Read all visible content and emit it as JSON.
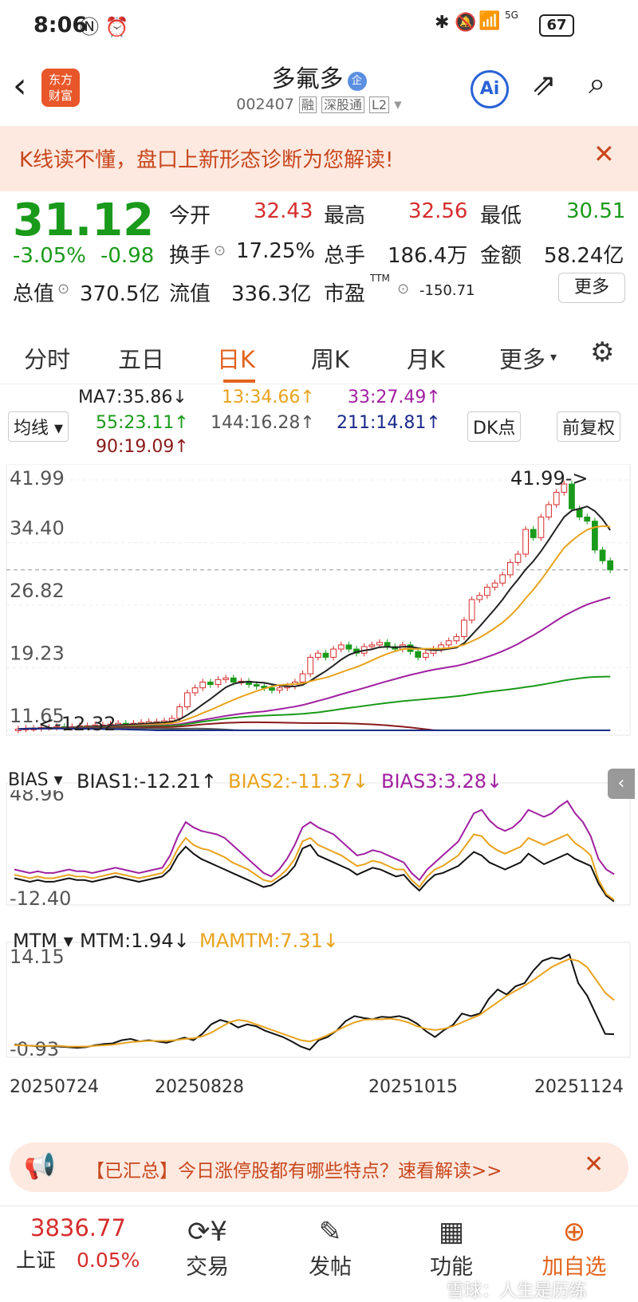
{
  "status": {
    "time": "8:06",
    "battery": "67",
    "net": "5G"
  },
  "header": {
    "title": "多氟多",
    "code": "002407",
    "tag_rong": "融",
    "tag_sgt": "深股通",
    "tag_l2": "L2",
    "logo_line1": "东方",
    "logo_line2": "财富",
    "ai": "Ai"
  },
  "banner": {
    "text": "K线读不懂，盘口上新形态诊断为您解读!"
  },
  "quote": {
    "price": "31.12",
    "pct": "-3.05%",
    "chg": "-0.98",
    "open_label": "今开",
    "open": "32.43",
    "high_label": "最高",
    "high": "32.56",
    "low_label": "最低",
    "low": "30.51",
    "turnover_label": "换手",
    "turnover": "17.25%",
    "vol_label": "总手",
    "vol": "186.4万",
    "amount_label": "金额",
    "amount": "58.24亿",
    "mcap_label": "总值",
    "mcap": "370.5亿",
    "float_label": "流值",
    "float": "336.3亿",
    "pe_label": "市盈",
    "pe_sup": "TTM",
    "pe": "-150.71",
    "more": "更多"
  },
  "tabs": [
    "分时",
    "五日",
    "日K",
    "周K",
    "月K",
    "更多"
  ],
  "ma": {
    "ma_btn": "均线",
    "ma7": "MA7:35.86↓",
    "ma13": "13:34.66↑",
    "ma33": "33:27.49↑",
    "ma55": "55:23.11↑",
    "ma144": "144:16.28↑",
    "ma211": "211:14.81↑",
    "ma90": "90:19.09↑",
    "dk": "DK点",
    "fq": "前复权"
  },
  "bias": {
    "btn": "BIAS",
    "b1": "BIAS1:-12.21↑",
    "b2": "BIAS2:-11.37↓",
    "b3": "BIAS3:3.28↓"
  },
  "mtm": {
    "btn": "MTM",
    "m1": "MTM:1.94↓",
    "m2": "MAMTM:7.31↓"
  },
  "colors": {
    "up": "#d62d2d",
    "down": "#1a9a1a",
    "orange": "#e8a31d",
    "purple": "#a020a0",
    "navy": "#1a2a8a",
    "darkred": "#8b1a1a",
    "gray": "#555555"
  },
  "chart_data": [
    {
      "type": "candlestick",
      "price_axis_ticks": [
        "41.99",
        "34.40",
        "26.82",
        "19.23",
        "11.65"
      ],
      "ylim": [
        11.65,
        41.99
      ],
      "max_label": "41.99->",
      "min_label": "<-12.32",
      "x_ticks": [
        "20250724",
        "20250828",
        "20251015",
        "20251124"
      ],
      "close": [
        11.8,
        11.9,
        11.9,
        12.0,
        12.0,
        12.1,
        12.0,
        12.1,
        12.2,
        12.2,
        12.3,
        12.3,
        12.4,
        12.5,
        12.4,
        12.5,
        12.6,
        12.7,
        12.7,
        12.8,
        13.1,
        14.5,
        16.2,
        16.8,
        17.5,
        17.2,
        17.8,
        18.0,
        17.5,
        17.6,
        17.2,
        17.0,
        16.8,
        16.5,
        16.8,
        17.0,
        17.5,
        18.5,
        20.5,
        21.0,
        20.5,
        21.5,
        22.0,
        21.5,
        21.0,
        21.8,
        22.0,
        22.3,
        21.8,
        21.5,
        22.0,
        21.2,
        20.5,
        21.0,
        21.5,
        22.0,
        22.5,
        23.0,
        25.0,
        27.5,
        28.0,
        29.0,
        29.5,
        30.5,
        32.0,
        33.0,
        36.0,
        35.0,
        37.5,
        39.0,
        40.5,
        41.5,
        38.5,
        37.5,
        37.0,
        33.5,
        32.2,
        31.1
      ],
      "open": [
        11.7,
        11.8,
        11.9,
        11.9,
        12.0,
        12.0,
        12.1,
        12.0,
        12.1,
        12.2,
        12.2,
        12.3,
        12.3,
        12.4,
        12.5,
        12.4,
        12.5,
        12.6,
        12.7,
        12.7,
        12.8,
        13.1,
        14.5,
        16.2,
        16.8,
        17.5,
        17.2,
        17.8,
        18.0,
        17.5,
        17.6,
        17.2,
        17.0,
        16.8,
        16.5,
        16.8,
        17.0,
        17.5,
        18.5,
        20.5,
        21.0,
        20.5,
        21.5,
        22.0,
        21.5,
        21.0,
        21.8,
        22.0,
        22.3,
        21.8,
        21.5,
        22.0,
        21.2,
        20.5,
        21.0,
        21.5,
        22.0,
        22.5,
        23.0,
        25.0,
        27.5,
        28.0,
        29.0,
        29.5,
        30.5,
        32.0,
        33.0,
        36.0,
        35.0,
        37.5,
        39.0,
        40.5,
        41.5,
        38.5,
        37.5,
        37.0,
        33.5,
        32.2
      ],
      "ma_series": [
        {
          "name": "MA7",
          "value": 35.86
        },
        {
          "name": "13",
          "value": 34.66
        },
        {
          "name": "33",
          "value": 27.49
        },
        {
          "name": "55",
          "value": 23.11
        },
        {
          "name": "90",
          "value": 19.09
        },
        {
          "name": "144",
          "value": 16.28
        },
        {
          "name": "211",
          "value": 14.81
        }
      ]
    },
    {
      "type": "line",
      "name": "BIAS",
      "ticks": [
        "48.96",
        "-12.40"
      ],
      "ylim": [
        -12.4,
        48.96
      ],
      "series": [
        {
          "name": "BIAS1",
          "values": [
            1,
            0,
            -1,
            0,
            -1,
            -1,
            0,
            1,
            0,
            0,
            -1,
            0,
            1,
            2,
            1,
            0,
            -1,
            0,
            1,
            2,
            6,
            14,
            19,
            15,
            12,
            10,
            8,
            6,
            4,
            2,
            0,
            -2,
            -4,
            -3,
            0,
            3,
            8,
            18,
            20,
            14,
            12,
            10,
            8,
            6,
            3,
            5,
            7,
            6,
            4,
            2,
            3,
            -2,
            -6,
            -1,
            3,
            4,
            6,
            8,
            12,
            16,
            14,
            10,
            8,
            6,
            8,
            10,
            15,
            12,
            9,
            11,
            13,
            15,
            12,
            10,
            8,
            -2,
            -9,
            -12.21
          ]
        },
        {
          "name": "BIAS2",
          "values": [
            3,
            2,
            1,
            2,
            1,
            1,
            2,
            3,
            2,
            2,
            1,
            2,
            3,
            4,
            3,
            2,
            1,
            2,
            3,
            4,
            9,
            18,
            24,
            20,
            18,
            17,
            15,
            13,
            10,
            8,
            6,
            3,
            0,
            -1,
            2,
            6,
            12,
            22,
            24,
            20,
            18,
            16,
            14,
            11,
            8,
            9,
            11,
            10,
            8,
            6,
            6,
            0,
            -4,
            2,
            6,
            8,
            11,
            14,
            20,
            26,
            25,
            20,
            17,
            15,
            17,
            19,
            24,
            22,
            20,
            22,
            24,
            26,
            21,
            18,
            14,
            0,
            -8,
            -11.37
          ]
        },
        {
          "name": "BIAS3",
          "values": [
            6,
            5,
            4,
            5,
            4,
            4,
            5,
            6,
            5,
            5,
            4,
            5,
            6,
            7,
            6,
            5,
            4,
            5,
            6,
            7,
            14,
            25,
            33,
            30,
            28,
            27,
            26,
            24,
            20,
            16,
            12,
            8,
            4,
            2,
            6,
            12,
            20,
            30,
            33,
            30,
            28,
            26,
            22,
            18,
            14,
            15,
            17,
            16,
            14,
            12,
            10,
            4,
            0,
            6,
            10,
            14,
            18,
            22,
            30,
            38,
            40,
            34,
            30,
            28,
            30,
            34,
            40,
            38,
            36,
            38,
            42,
            45,
            38,
            33,
            25,
            12,
            6,
            3.28
          ]
        }
      ]
    },
    {
      "type": "line",
      "name": "MTM",
      "ticks": [
        "14.15",
        "-0.93"
      ],
      "ylim": [
        -0.93,
        14.15
      ],
      "series": [
        {
          "name": "MTM",
          "values": [
            0.3,
            0.2,
            0.1,
            0.0,
            0.1,
            0.0,
            -0.1,
            -0.2,
            -0.1,
            0.2,
            0.4,
            0.5,
            1.0,
            1.2,
            0.8,
            1.0,
            0.8,
            0.6,
            1.0,
            1.4,
            1.0,
            2.0,
            3.5,
            4.2,
            3.8,
            3.0,
            3.5,
            3.2,
            2.5,
            2.0,
            1.5,
            0.8,
            0.0,
            -0.5,
            1.0,
            1.5,
            2.5,
            4.0,
            4.8,
            4.5,
            4.3,
            4.7,
            4.6,
            4.8,
            4.4,
            3.6,
            2.4,
            1.5,
            2.6,
            3.4,
            5.2,
            4.8,
            5.2,
            7.5,
            9.0,
            8.2,
            9.5,
            10.0,
            12.0,
            13.5,
            14.0,
            13.8,
            14.5,
            10.0,
            8.0,
            5.0,
            2.0,
            1.94
          ]
        },
        {
          "name": "MAMTM",
          "values": [
            0.2,
            0.2,
            0.1,
            0.1,
            0.1,
            0.1,
            0.0,
            0.0,
            0.0,
            0.1,
            0.2,
            0.3,
            0.5,
            0.7,
            0.8,
            0.9,
            0.9,
            0.9,
            1.0,
            1.2,
            1.3,
            1.6,
            2.2,
            3.0,
            3.8,
            4.2,
            4.0,
            3.5,
            3.0,
            2.5,
            2.0,
            1.5,
            1.0,
            0.8,
            1.2,
            1.8,
            2.5,
            3.2,
            3.8,
            4.2,
            4.3,
            4.3,
            4.4,
            4.2,
            3.8,
            3.2,
            2.8,
            2.6,
            2.8,
            3.2,
            3.8,
            4.4,
            5.0,
            6.0,
            7.0,
            8.0,
            8.8,
            9.6,
            10.5,
            11.5,
            12.5,
            13.2,
            13.8,
            13.5,
            12.5,
            10.5,
            8.5,
            7.31
          ]
        }
      ]
    }
  ],
  "ad": {
    "text": "【已汇总】今日涨停股都有哪些特点？速看解读>>"
  },
  "bottom": {
    "index_val": "3836.77",
    "index_name": "上证",
    "index_pct": "0.05%",
    "trade": "交易",
    "post": "发帖",
    "func": "功能",
    "add": "加自选",
    "watermark": "雪球：人生是历练"
  }
}
